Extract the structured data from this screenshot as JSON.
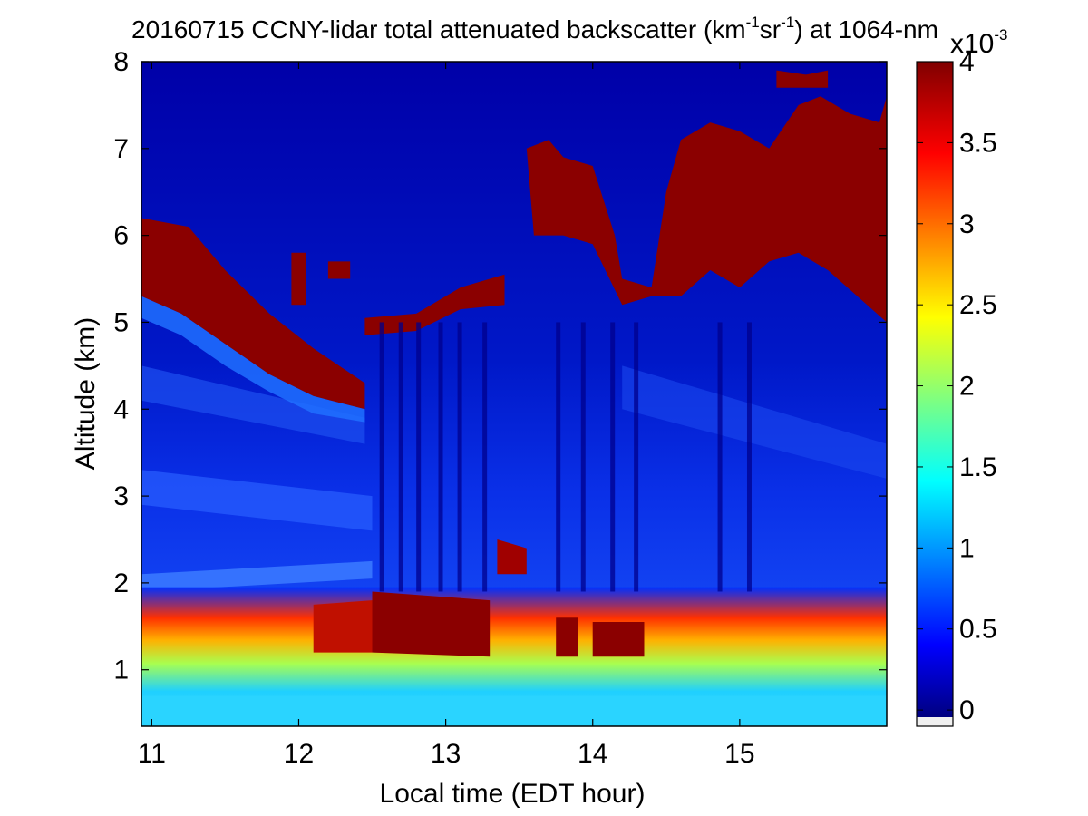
{
  "chart_data": {
    "type": "heatmap",
    "title": {
      "prefix": "20160715 CCNY-lidar total attenuated backscatter (km",
      "sup1": "-1",
      "mid": "sr",
      "sup2": "-1",
      "suffix": ") at 1064-nm"
    },
    "xlabel": "Local time (EDT hour)",
    "ylabel": "Altitude (km)",
    "xlim": [
      10.93,
      16.0
    ],
    "ylim": [
      0.35,
      8.0
    ],
    "xticks": [
      "11",
      "12",
      "13",
      "14",
      "15"
    ],
    "yticks": [
      "1",
      "2",
      "3",
      "4",
      "5",
      "6",
      "7",
      "8"
    ],
    "colorbar": {
      "range": [
        -0.1,
        4.0
      ],
      "ticks": [
        "0",
        "0.5",
        "1",
        "1.5",
        "2",
        "2.5",
        "3",
        "3.5",
        "4"
      ],
      "exponent_base": "x10",
      "exponent_power": "-3",
      "colormap": "jet",
      "undercolor": "#f0f0f0"
    },
    "features": [
      {
        "name": "boundary-layer",
        "t_range": [
          10.93,
          16.0
        ],
        "alt_range": [
          0.35,
          1.9
        ],
        "value": "1.0-4.0"
      },
      {
        "name": "aerosol-layer-2km",
        "t_range": [
          10.93,
          12.5
        ],
        "alt_range": [
          1.8,
          2.2
        ],
        "value": "0.6-0.9"
      },
      {
        "name": "mid-cloud-descending",
        "t_range": [
          10.93,
          12.45
        ],
        "alt_range": [
          4.2,
          6.2
        ],
        "value": "4.0"
      },
      {
        "name": "mid-cloud-5km",
        "t_range": [
          12.45,
          13.4
        ],
        "alt_range": [
          4.9,
          5.6
        ],
        "value": "4.0"
      },
      {
        "name": "high-cloud",
        "t_range": [
          13.55,
          16.0
        ],
        "alt_range": [
          5.0,
          7.8
        ],
        "value": "4.0"
      }
    ]
  }
}
